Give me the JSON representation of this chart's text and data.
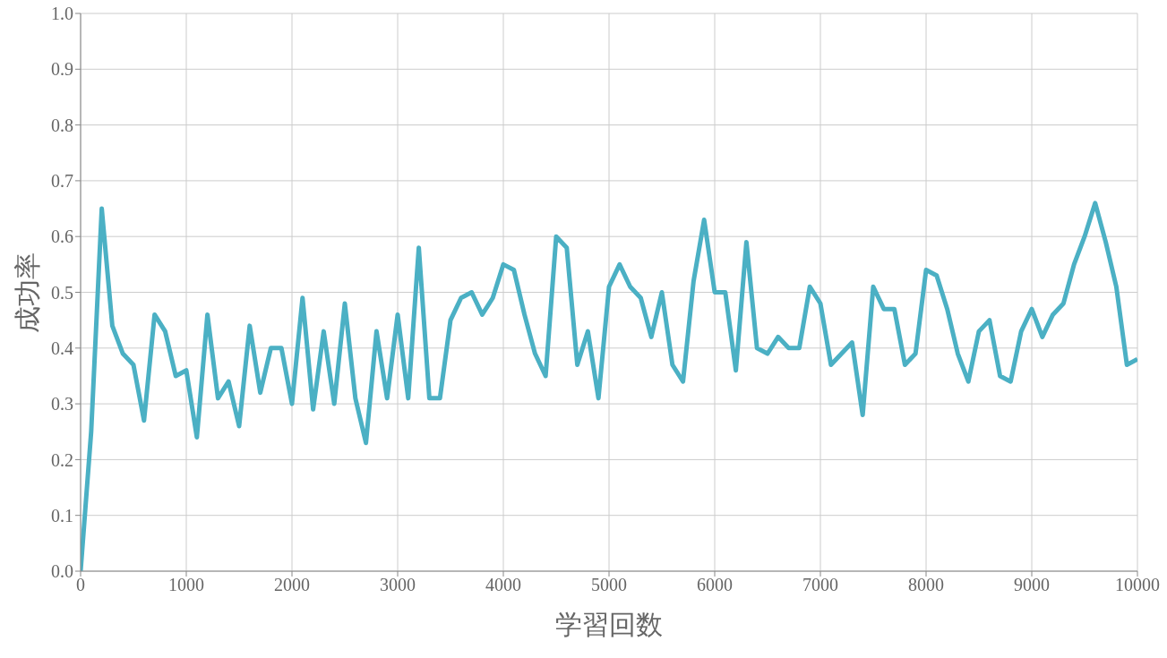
{
  "chart_data": {
    "type": "line",
    "xlabel": "学習回数",
    "ylabel": "成功率",
    "x": [
      0,
      100,
      200,
      300,
      400,
      500,
      600,
      700,
      800,
      900,
      1000,
      1100,
      1200,
      1300,
      1400,
      1500,
      1600,
      1700,
      1800,
      1900,
      2000,
      2100,
      2200,
      2300,
      2400,
      2500,
      2600,
      2700,
      2800,
      2900,
      3000,
      3100,
      3200,
      3300,
      3400,
      3500,
      3600,
      3700,
      3800,
      3900,
      4000,
      4100,
      4200,
      4300,
      4400,
      4500,
      4600,
      4700,
      4800,
      4900,
      5000,
      5100,
      5200,
      5300,
      5400,
      5500,
      5600,
      5700,
      5800,
      5900,
      6000,
      6100,
      6200,
      6300,
      6400,
      6500,
      6600,
      6700,
      6800,
      6900,
      7000,
      7100,
      7200,
      7300,
      7400,
      7500,
      7600,
      7700,
      7800,
      7900,
      8000,
      8100,
      8200,
      8300,
      8400,
      8500,
      8600,
      8700,
      8800,
      8900,
      9000,
      9100,
      9200,
      9300,
      9400,
      9500,
      9600,
      9700,
      9800,
      9900,
      10000
    ],
    "series": [
      {
        "color": "#4bb0c4",
        "values": [
          0.0,
          0.25,
          0.65,
          0.44,
          0.39,
          0.37,
          0.27,
          0.46,
          0.43,
          0.35,
          0.36,
          0.24,
          0.46,
          0.31,
          0.34,
          0.26,
          0.44,
          0.32,
          0.4,
          0.4,
          0.3,
          0.49,
          0.29,
          0.43,
          0.3,
          0.48,
          0.31,
          0.23,
          0.43,
          0.31,
          0.46,
          0.31,
          0.58,
          0.31,
          0.31,
          0.45,
          0.49,
          0.5,
          0.46,
          0.49,
          0.55,
          0.54,
          0.46,
          0.39,
          0.35,
          0.6,
          0.58,
          0.37,
          0.43,
          0.31,
          0.51,
          0.55,
          0.51,
          0.49,
          0.42,
          0.5,
          0.37,
          0.34,
          0.52,
          0.63,
          0.5,
          0.5,
          0.36,
          0.59,
          0.4,
          0.39,
          0.42,
          0.4,
          0.4,
          0.51,
          0.48,
          0.37,
          0.39,
          0.41,
          0.28,
          0.51,
          0.47,
          0.47,
          0.37,
          0.39,
          0.54,
          0.53,
          0.47,
          0.39,
          0.34,
          0.43,
          0.45,
          0.35,
          0.34,
          0.43,
          0.47,
          0.42,
          0.46,
          0.48,
          0.55,
          0.6,
          0.66,
          0.59,
          0.51,
          0.37,
          0.38
        ]
      }
    ],
    "xlim": [
      0,
      10000
    ],
    "xticks": [
      0,
      1000,
      2000,
      3000,
      4000,
      5000,
      6000,
      7000,
      8000,
      9000,
      10000
    ],
    "ylim": [
      0,
      1
    ],
    "yticks": [
      {
        "value": 0,
        "label": "0.0"
      },
      {
        "value": 0.1,
        "label": "0.1"
      },
      {
        "value": 0.2,
        "label": "0.2"
      },
      {
        "value": 0.3,
        "label": "0.3"
      },
      {
        "value": 0.4,
        "label": "0.4"
      },
      {
        "value": 0.5,
        "label": "0.5"
      },
      {
        "value": 0.6,
        "label": "0.6"
      },
      {
        "value": 0.7,
        "label": "0.7"
      },
      {
        "value": 0.8,
        "label": "0.8"
      },
      {
        "value": 0.9,
        "label": "0.9"
      },
      {
        "value": 1,
        "label": "1.0"
      }
    ],
    "grid": true,
    "legend": false,
    "marker": "none",
    "line_style": "solid"
  }
}
